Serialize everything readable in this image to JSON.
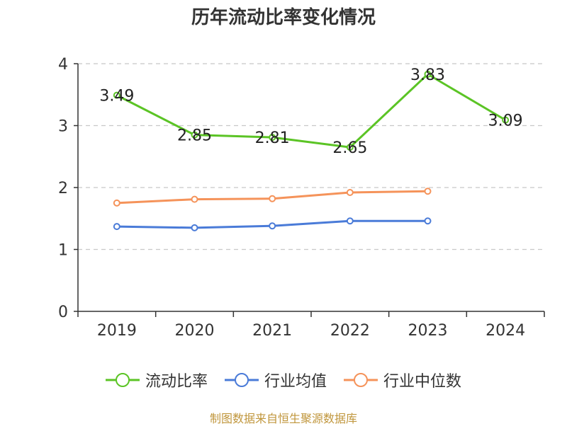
{
  "title": "历年流动比率变化情况",
  "source": "制图数据来自恒生聚源数据库",
  "chart_data": {
    "type": "line",
    "title": "历年流动比率变化情况",
    "categories": [
      "2019",
      "2020",
      "2021",
      "2022",
      "2023",
      "2024"
    ],
    "ylim": [
      0,
      4
    ],
    "yticks": [
      0,
      1,
      2,
      3,
      4
    ],
    "grid": true,
    "legend_position": "bottom",
    "series": [
      {
        "name": "流动比率",
        "color": "#5bc425",
        "values": [
          3.49,
          2.85,
          2.81,
          2.65,
          3.83,
          3.09
        ],
        "labels": [
          "3.49",
          "2.85",
          "2.81",
          "2.65",
          "3.83",
          "3.09"
        ]
      },
      {
        "name": "行业均值",
        "color": "#4a7bd8",
        "values": [
          1.37,
          1.35,
          1.38,
          1.46,
          1.46,
          null
        ]
      },
      {
        "name": "行业中位数",
        "color": "#f5935a",
        "values": [
          1.75,
          1.81,
          1.82,
          1.92,
          1.94,
          null
        ]
      }
    ]
  }
}
